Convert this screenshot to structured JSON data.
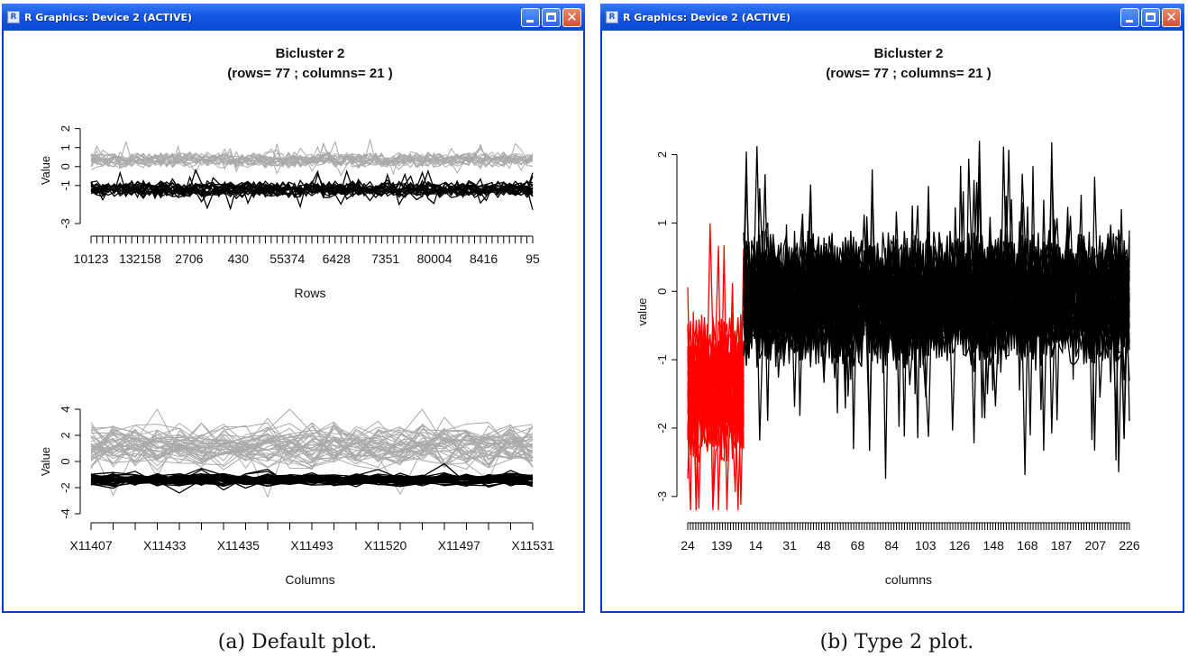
{
  "windows": [
    {
      "title": "R Graphics: Device 2 (ACTIVE)",
      "icon": "r-icon",
      "icon_label": "R",
      "close_glyph": "✕"
    },
    {
      "title": "R Graphics: Device 2 (ACTIVE)",
      "icon": "r-icon",
      "icon_label": "R",
      "close_glyph": "✕"
    }
  ],
  "captions": [
    "(a) Default plot.",
    "(b) Type 2 plot."
  ],
  "colors": {
    "titlebar": "#1457e4",
    "window_border": "#0a3fcc",
    "bicluster_series": "#000000",
    "background_series": "#aaaaaa",
    "highlight_series": "#ff0000"
  },
  "chart_data": [
    {
      "type": "line",
      "title": "Bicluster 2",
      "subtitle": "(rows= 77 ; columns= 21 )",
      "xlabel": "Rows",
      "ylabel": "Value",
      "ylim": [
        -3,
        2.6
      ],
      "yticks": [
        -3,
        -1,
        0,
        1,
        2
      ],
      "xtick_labels": [
        "10123",
        "132158",
        "2706",
        "430",
        "55374",
        "6428",
        "7351",
        "80004",
        "8416",
        "95"
      ],
      "num_ticks": 77,
      "series": [
        {
          "name": "",
          "color": "#aaaaaa",
          "center": 0.35,
          "spread": 0.55,
          "count": 18,
          "points": 77
        },
        {
          "name": "",
          "color": "#000000",
          "center": -1.2,
          "spread": 0.6,
          "count": 21,
          "points": 77
        }
      ]
    },
    {
      "type": "line",
      "title": "",
      "subtitle": "",
      "xlabel": "Columns",
      "ylabel": "Value",
      "ylim": [
        -4,
        4
      ],
      "yticks": [
        -4,
        -2,
        0,
        2,
        4
      ],
      "xtick_labels": [
        "X11407",
        "X11433",
        "X11435",
        "X11493",
        "X11520",
        "X11497",
        "X11531"
      ],
      "num_ticks": 21,
      "series": [
        {
          "name": "",
          "color": "#aaaaaa",
          "center": 1.2,
          "spread": 2.4,
          "count": 40,
          "points": 21
        },
        {
          "name": "",
          "color": "#000000",
          "center": -1.4,
          "spread": 0.7,
          "count": 40,
          "points": 21
        }
      ]
    },
    {
      "type": "line",
      "title": "Bicluster 2",
      "subtitle": "(rows= 77 ; columns= 21 )",
      "xlabel": "columns",
      "ylabel": "value",
      "ylim": [
        -3.2,
        2.6
      ],
      "yticks": [
        -3,
        -2,
        -1,
        0,
        1,
        2
      ],
      "xtick_labels": [
        "24",
        "139",
        "14",
        "31",
        "48",
        "68",
        "84",
        "103",
        "126",
        "148",
        "168",
        "187",
        "207",
        "226"
      ],
      "num_ticks": 166,
      "series": [
        {
          "name": "",
          "color": "#ff0000",
          "center": -1.4,
          "spread": 1.4,
          "count": 40,
          "points": 21
        },
        {
          "name": "",
          "color": "#000000",
          "center": -0.1,
          "spread": 1.3,
          "count": 40,
          "points": 145
        }
      ]
    }
  ]
}
